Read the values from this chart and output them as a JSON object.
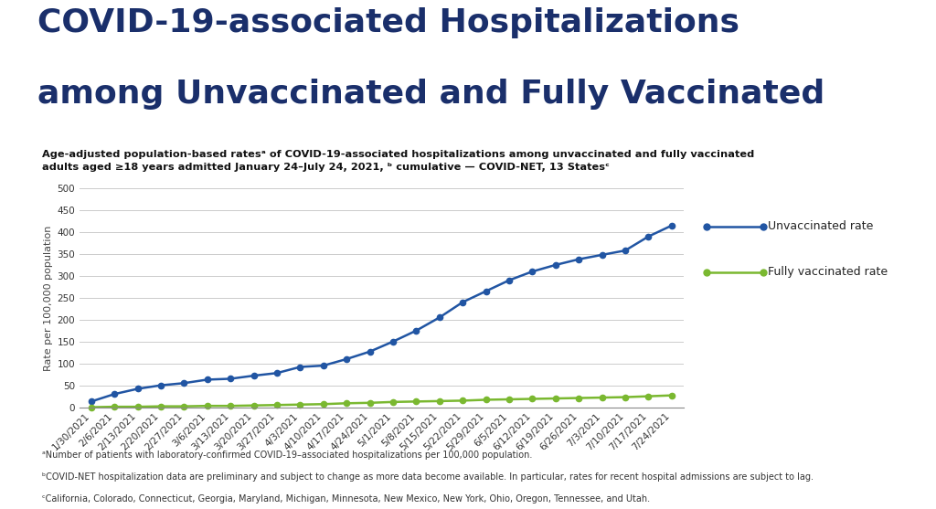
{
  "title_line1": "COVID-19-associated Hospitalizations",
  "title_line2": "among Unvaccinated and Fully Vaccinated",
  "subtitle": "Age-adjusted population-based ratesᵃ of COVID-19-associated hospitalizations among unvaccinated and fully vaccinated\nadults aged ≥18 years admitted January 24–July 24, 2021, ᵇ cumulative — COVID-NET, 13 Statesᶜ",
  "footnotes": [
    "ᵃNumber of patients with laboratory-confirmed COVID-19–associated hospitalizations per 100,000 population.",
    "ᵇCOVID-NET hospitalization data are preliminary and subject to change as more data become available. In particular, rates for recent hospital admissions are subject to lag.",
    "ᶜCalifornia, Colorado, Connecticut, Georgia, Maryland, Michigan, Minnesota, New Mexico, New York, Ohio, Oregon, Tennessee, and Utah."
  ],
  "x_labels": [
    "1/30/2021",
    "2/6/2021",
    "2/13/2021",
    "2/20/2021",
    "2/27/2021",
    "3/6/2021",
    "3/13/2021",
    "3/20/2021",
    "3/27/2021",
    "4/3/2021",
    "4/10/2021",
    "4/17/2021",
    "4/24/2021",
    "5/1/2021",
    "5/8/2021",
    "5/15/2021",
    "5/22/2021",
    "5/29/2021",
    "6/5/2021",
    "6/12/2021",
    "6/19/2021",
    "6/26/2021",
    "7/3/2021",
    "7/10/2021",
    "7/17/2021",
    "7/24/2021"
  ],
  "unvaccinated": [
    13,
    30,
    42,
    50,
    55,
    63,
    65,
    72,
    78,
    92,
    95,
    110,
    127,
    150,
    175,
    205,
    240,
    265,
    290,
    310,
    325,
    338,
    348,
    358,
    390,
    415
  ],
  "vaccinated": [
    0,
    1,
    1,
    2,
    2,
    3,
    3,
    4,
    5,
    6,
    7,
    9,
    10,
    12,
    13,
    14,
    15,
    17,
    18,
    19,
    20,
    21,
    22,
    23,
    25,
    27
  ],
  "unvaccinated_color": "#2155a3",
  "vaccinated_color": "#7ab830",
  "background_color": "#ffffff",
  "plot_bg_color": "#ffffff",
  "grid_color": "#cccccc",
  "ylabel": "Rate per 100,000 population",
  "ylim": [
    0,
    500
  ],
  "yticks": [
    0,
    50,
    100,
    150,
    200,
    250,
    300,
    350,
    400,
    450,
    500
  ],
  "legend_unvaccinated": "Unvaccinated rate",
  "legend_vaccinated": "Fully vaccinated rate",
  "title_color": "#1a2f6b",
  "subtitle_color": "#111111",
  "footnote_color": "#333333",
  "title_fontsize": 26,
  "subtitle_fontsize": 8.2,
  "footnote_fontsize": 7.0,
  "ylabel_fontsize": 8,
  "tick_fontsize": 7.5,
  "legend_fontsize": 9
}
